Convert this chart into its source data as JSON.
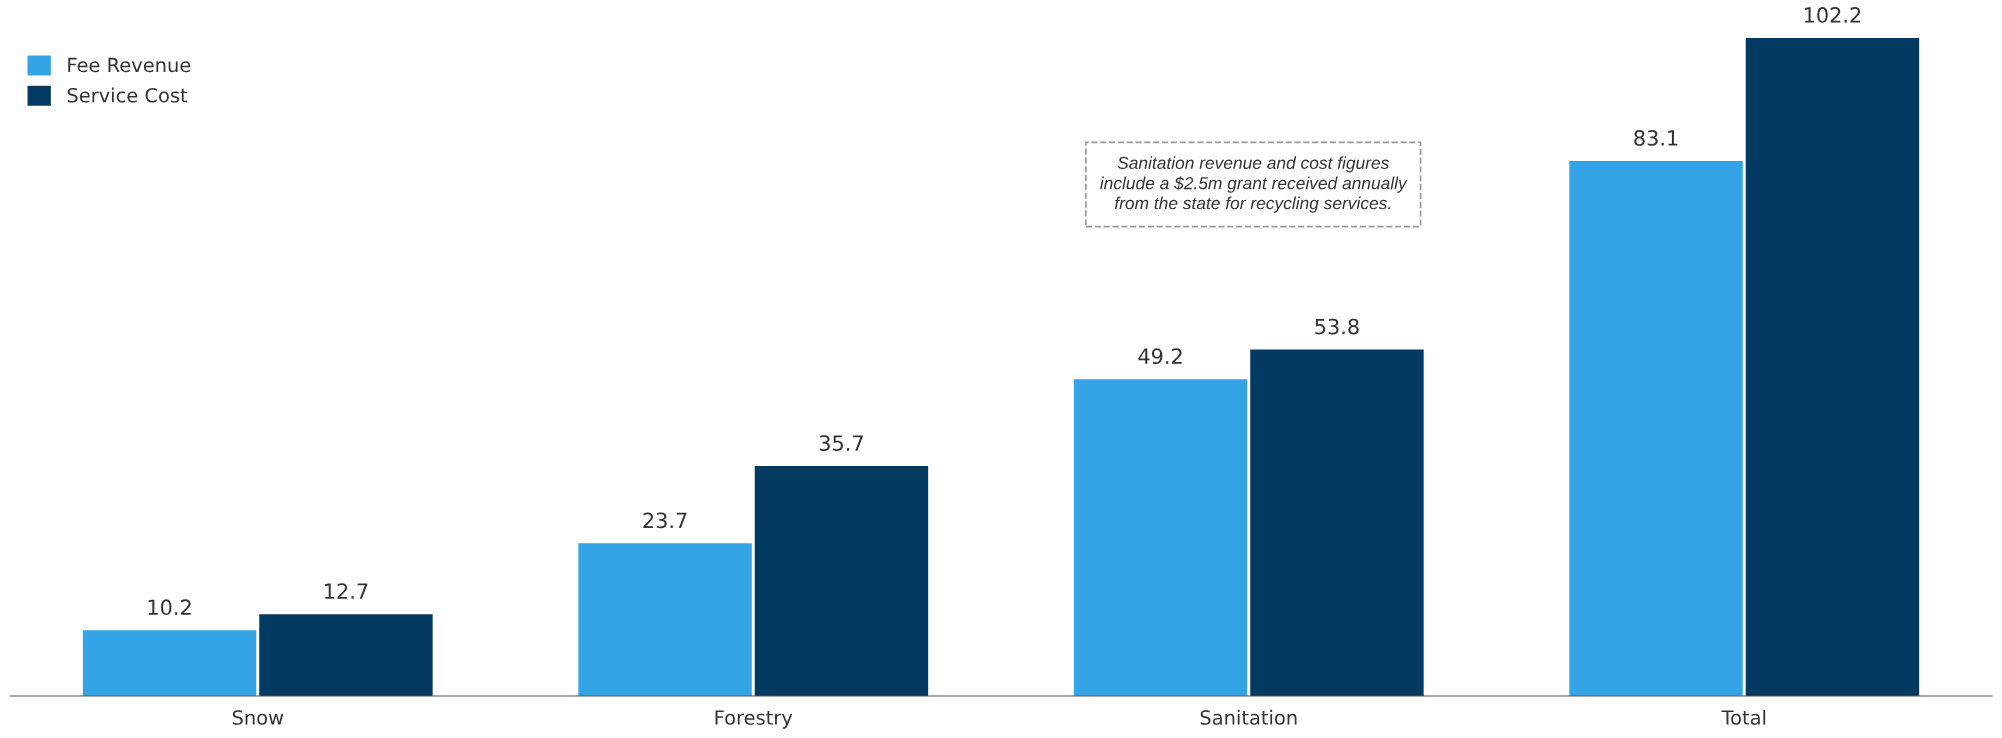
{
  "chart_data": {
    "type": "bar",
    "categories": [
      "Snow",
      "Forestry",
      "Sanitation",
      "Total"
    ],
    "series": [
      {
        "name": "Fee Revenue",
        "color": "#35a4e6",
        "values": [
          10.2,
          23.7,
          49.2,
          83.1
        ]
      },
      {
        "name": "Service Cost",
        "color": "#033a62",
        "values": [
          12.7,
          35.7,
          53.8,
          102.2
        ]
      }
    ],
    "data_labels": true,
    "legend": "top left",
    "grid": false,
    "annotations": [
      "Sanitation revenue and cost figures\ninclude a $2.5m grant received annually\nfrom the state for recycling services."
    ]
  }
}
